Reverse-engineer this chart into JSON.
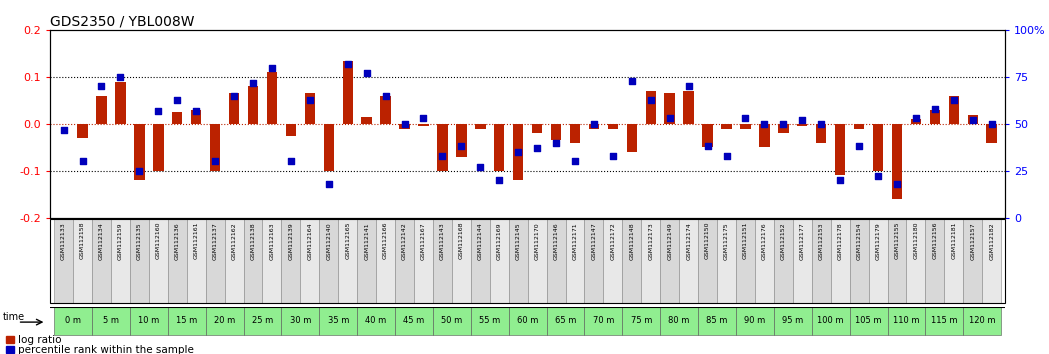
{
  "title": "GDS2350 / YBL008W",
  "categories": [
    "GSM112133",
    "GSM112158",
    "GSM112134",
    "GSM112159",
    "GSM112135",
    "GSM112160",
    "GSM112136",
    "GSM112161",
    "GSM112137",
    "GSM112162",
    "GSM112138",
    "GSM112163",
    "GSM112139",
    "GSM112164",
    "GSM112140",
    "GSM112165",
    "GSM112141",
    "GSM112166",
    "GSM112142",
    "GSM112167",
    "GSM112143",
    "GSM112168",
    "GSM112144",
    "GSM112169",
    "GSM112145",
    "GSM112170",
    "GSM112146",
    "GSM112171",
    "GSM112147",
    "GSM112172",
    "GSM112148",
    "GSM112173",
    "GSM112149",
    "GSM112174",
    "GSM112150",
    "GSM112175",
    "GSM112151",
    "GSM112176",
    "GSM112152",
    "GSM112177",
    "GSM112153",
    "GSM112178",
    "GSM112154",
    "GSM112179",
    "GSM112155",
    "GSM112180",
    "GSM112156",
    "GSM112181",
    "GSM112157",
    "GSM112182"
  ],
  "log_ratio": [
    0.0,
    -0.03,
    0.06,
    0.09,
    -0.12,
    -0.1,
    0.025,
    0.03,
    -0.1,
    0.065,
    0.08,
    0.11,
    -0.025,
    0.065,
    -0.1,
    0.135,
    0.015,
    0.06,
    -0.01,
    -0.005,
    -0.1,
    -0.07,
    -0.01,
    -0.1,
    -0.12,
    -0.02,
    -0.035,
    -0.04,
    -0.01,
    -0.01,
    -0.06,
    0.07,
    0.065,
    0.07,
    -0.05,
    -0.01,
    -0.01,
    -0.05,
    -0.02,
    -0.005,
    -0.04,
    -0.11,
    -0.01,
    -0.1,
    -0.16,
    0.01,
    0.03,
    0.06,
    0.02,
    -0.04
  ],
  "percentile": [
    47,
    30,
    70,
    75,
    25,
    57,
    63,
    57,
    30,
    65,
    72,
    80,
    30,
    63,
    18,
    82,
    77,
    65,
    50,
    53,
    33,
    38,
    27,
    20,
    35,
    37,
    40,
    30,
    50,
    33,
    73,
    63,
    53,
    70,
    38,
    33,
    53,
    50,
    50,
    52,
    50,
    20,
    38,
    22,
    18,
    53,
    58,
    63,
    52,
    50
  ],
  "time_labels": [
    "0 m",
    "5 m",
    "10 m",
    "15 m",
    "20 m",
    "25 m",
    "30 m",
    "35 m",
    "40 m",
    "45 m",
    "50 m",
    "55 m",
    "60 m",
    "65 m",
    "70 m",
    "75 m",
    "80 m",
    "85 m",
    "90 m",
    "95 m",
    "100 m",
    "105 m",
    "110 m",
    "115 m",
    "120 m"
  ],
  "ylim": [
    -0.2,
    0.2
  ],
  "left_yticks": [
    -0.2,
    -0.1,
    0.0,
    0.1,
    0.2
  ],
  "right_ylim": [
    0,
    100
  ],
  "right_yticks": [
    0,
    25,
    50,
    75,
    100
  ],
  "right_yticklabels": [
    "0",
    "25",
    "50",
    "75",
    "100%"
  ],
  "bar_color": "#BB2200",
  "dot_color": "#0000BB",
  "bg_color": "#FFFFFF",
  "title_fontsize": 10,
  "tick_fontsize": 7,
  "legend_fontsize": 7.5,
  "bar_width": 0.55,
  "time_row_color": "#90EE90",
  "gsm_row_color": "#D8D8D8",
  "gsm_row_color_alt": "#E8E8E8"
}
